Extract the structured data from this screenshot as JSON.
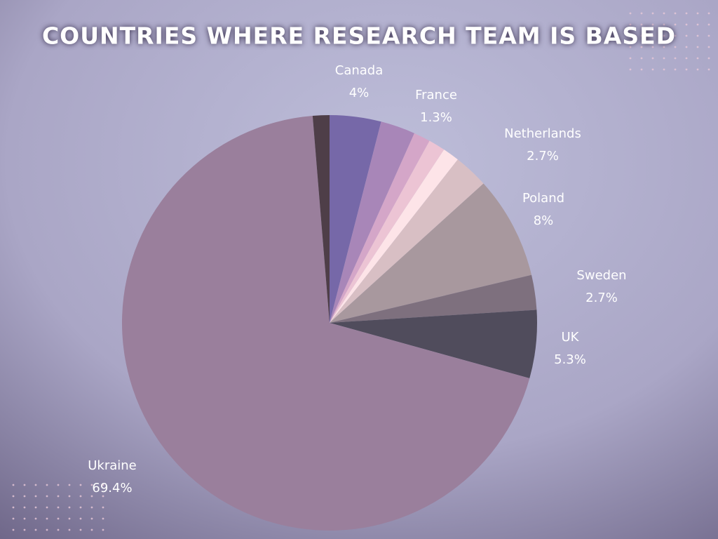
{
  "chart_data": {
    "type": "pie",
    "title": "COUNTRIES WHERE RESEARCH TEAM IS BASED",
    "categories": [
      "Canada",
      null,
      "France",
      null,
      null,
      "Netherlands",
      "Poland",
      "Sweden",
      "UK",
      "Ukraine",
      null
    ],
    "values": [
      4,
      2.7,
      1.3,
      1.3,
      1.3,
      2.7,
      8,
      2.7,
      5.3,
      69.4,
      1.3
    ],
    "value_labels": [
      "4%",
      null,
      "1.3%",
      null,
      null,
      "2.7%",
      "8%",
      "2.7%",
      "5.3%",
      "69.4%",
      null
    ],
    "colors": [
      "#7668a8",
      "#a886b8",
      "#d4a6c8",
      "#ecc4d4",
      "#fde4e8",
      "#d8bfc4",
      "#a8989e",
      "#7e707e",
      "#504c5c",
      "#9a7f9c",
      "#4e3e48"
    ]
  }
}
